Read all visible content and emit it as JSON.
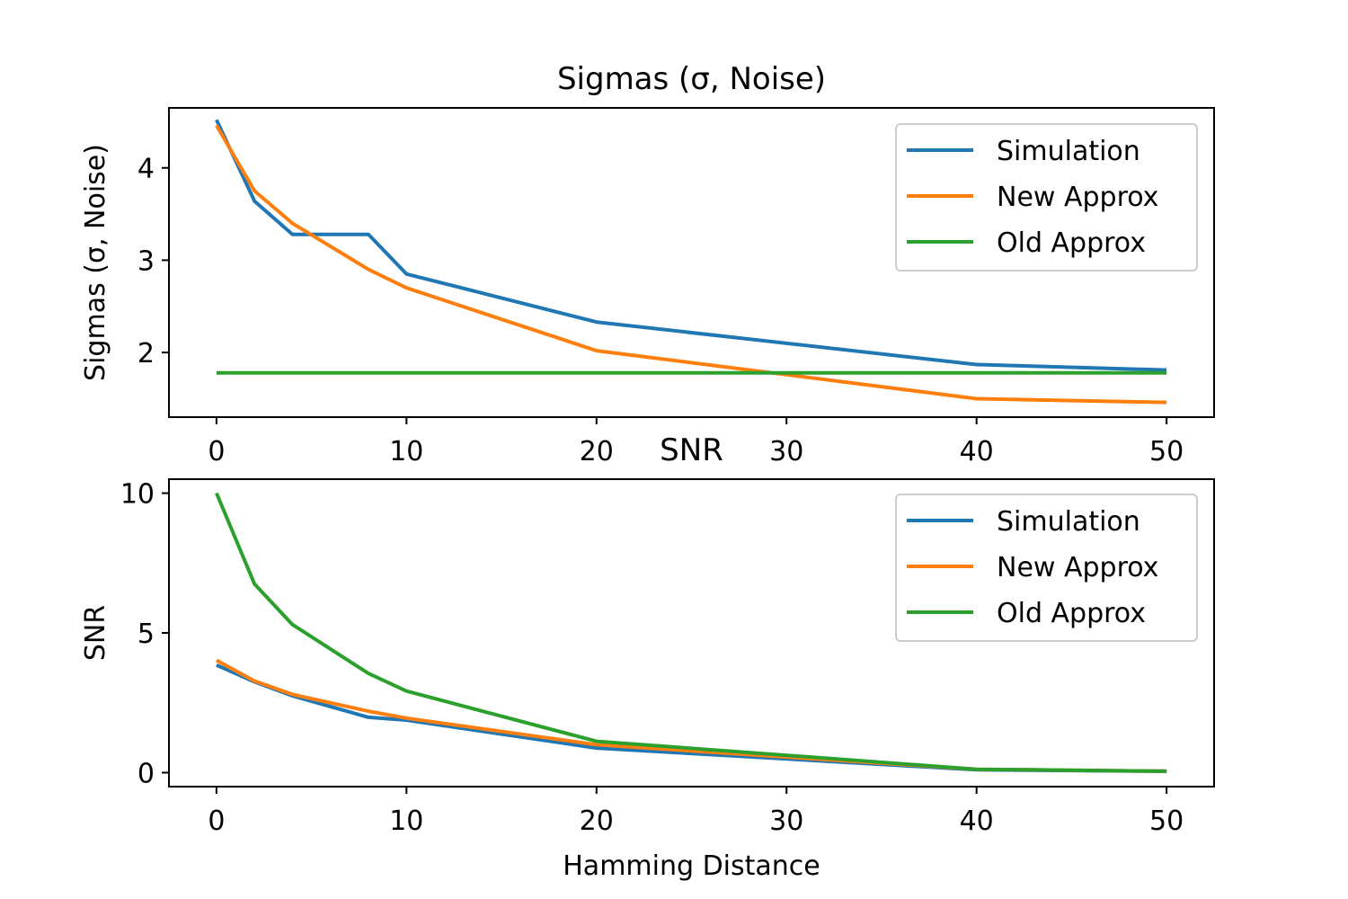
{
  "chart_data": [
    {
      "type": "line",
      "title": "Sigmas (σ, Noise)",
      "xlabel": "",
      "ylabel": "Sigmas (σ, Noise)",
      "xlim": [
        -2.5,
        52.5
      ],
      "ylim": [
        1.3,
        4.65
      ],
      "xticks": [
        0,
        10,
        20,
        30,
        40,
        50
      ],
      "yticks": [
        2,
        3,
        4
      ],
      "grid": false,
      "legend": "top-right",
      "x": [
        0,
        2,
        4,
        8,
        10,
        20,
        40,
        50
      ],
      "series": [
        {
          "name": "Simulation",
          "color": "#1f77b4",
          "values": [
            4.52,
            3.64,
            3.28,
            3.28,
            2.85,
            2.33,
            1.87,
            1.81
          ]
        },
        {
          "name": "New Approx",
          "color": "#ff7f0e",
          "values": [
            4.46,
            3.75,
            3.4,
            2.9,
            2.7,
            2.02,
            1.5,
            1.46
          ]
        },
        {
          "name": "Old Approx",
          "color": "#2ca02c",
          "values": [
            1.78,
            1.78,
            1.78,
            1.78,
            1.78,
            1.78,
            1.78,
            1.78
          ]
        }
      ]
    },
    {
      "type": "line",
      "title": "SNR",
      "xlabel": "Hamming Distance",
      "ylabel": "SNR",
      "xlim": [
        -2.5,
        52.5
      ],
      "ylim": [
        -0.5,
        10.5
      ],
      "xticks": [
        0,
        10,
        20,
        30,
        40,
        50
      ],
      "yticks": [
        0,
        5,
        10
      ],
      "grid": false,
      "legend": "top-right",
      "x": [
        0,
        2,
        4,
        8,
        10,
        20,
        40,
        50
      ],
      "series": [
        {
          "name": "Simulation",
          "color": "#1f77b4",
          "values": [
            3.85,
            3.25,
            2.75,
            1.98,
            1.88,
            0.88,
            0.1,
            0.05
          ]
        },
        {
          "name": "New Approx",
          "color": "#ff7f0e",
          "values": [
            4.02,
            3.28,
            2.8,
            2.2,
            1.95,
            1.0,
            0.12,
            0.05
          ]
        },
        {
          "name": "Old Approx",
          "color": "#2ca02c",
          "values": [
            10.0,
            6.75,
            5.3,
            3.55,
            2.92,
            1.12,
            0.12,
            0.05
          ]
        }
      ]
    }
  ]
}
